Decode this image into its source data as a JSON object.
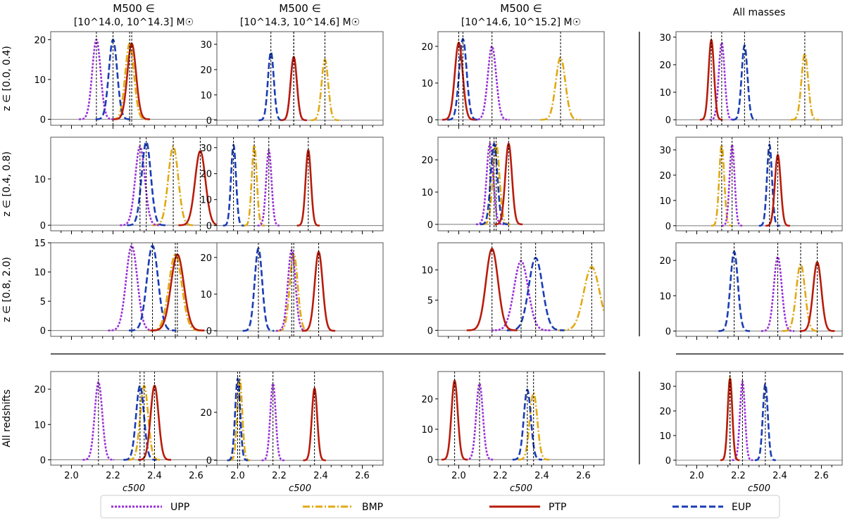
{
  "figure": {
    "column_titles": [
      {
        "line1": "M500 ∈",
        "line2": "[10^14.0, 10^14.3] M☉"
      },
      {
        "line1": "M500 ∈",
        "line2": "[10^14.3, 10^14.6] M☉"
      },
      {
        "line1": "M500 ∈",
        "line2": "[10^14.6, 10^15.2] M☉"
      },
      {
        "line1": "All masses",
        "line2": ""
      }
    ],
    "row_labels": [
      "z ∈ [0.0, 0.4)",
      "z ∈ [0.4, 0.8)",
      "z ∈ [0.8, 2.0)",
      "All redshifts"
    ],
    "x_label": "c500",
    "x_ticks": [
      "2.0",
      "2.2",
      "2.4",
      "2.6"
    ],
    "legend": [
      {
        "key": "UPP",
        "label": "UPP",
        "color": "#9b30d9",
        "dash": "3,2"
      },
      {
        "key": "BMP",
        "label": "BMP",
        "color": "#e0a914",
        "dash": "10,3,2,3"
      },
      {
        "key": "PTP",
        "label": "PTP",
        "color": "#b81c0c",
        "dash": ""
      },
      {
        "key": "EUP",
        "label": "EUP",
        "color": "#1a3db4",
        "dash": "9,4"
      }
    ]
  },
  "chart_data": {
    "type": "line",
    "description_units": "Gaussian posterior curves: mu = peak location (c500), sigma = width, a = peak density",
    "xlim": [
      1.9,
      2.7
    ],
    "panels": [
      {
        "row": 0,
        "col": 0,
        "ylim": [
          -1.5,
          22
        ],
        "yticks": [
          0,
          10,
          20
        ],
        "series": [
          {
            "name": "UPP",
            "mu": 2.12,
            "sigma": 0.02,
            "a": 20
          },
          {
            "name": "BMP",
            "mu": 2.28,
            "sigma": 0.021,
            "a": 19
          },
          {
            "name": "PTP",
            "mu": 2.29,
            "sigma": 0.021,
            "a": 19
          },
          {
            "name": "EUP",
            "mu": 2.2,
            "sigma": 0.02,
            "a": 20
          }
        ]
      },
      {
        "row": 0,
        "col": 1,
        "ylim": [
          -2,
          35
        ],
        "yticks": [
          0,
          10,
          20,
          30
        ],
        "series": [
          {
            "name": "UPP",
            "mu": 2.27,
            "sigma": 0.015,
            "a": 25
          },
          {
            "name": "BMP",
            "mu": 2.42,
            "sigma": 0.016,
            "a": 24
          },
          {
            "name": "PTP",
            "mu": 2.27,
            "sigma": 0.015,
            "a": 25
          },
          {
            "name": "EUP",
            "mu": 2.16,
            "sigma": 0.014,
            "a": 27
          }
        ]
      },
      {
        "row": 0,
        "col": 2,
        "ylim": [
          -1.5,
          24
        ],
        "yticks": [
          0,
          10,
          20
        ],
        "series": [
          {
            "name": "UPP",
            "mu": 2.16,
            "sigma": 0.02,
            "a": 20
          },
          {
            "name": "BMP",
            "mu": 2.49,
            "sigma": 0.023,
            "a": 17
          },
          {
            "name": "PTP",
            "mu": 2.0,
            "sigma": 0.019,
            "a": 21
          },
          {
            "name": "EUP",
            "mu": 2.02,
            "sigma": 0.018,
            "a": 22
          }
        ]
      },
      {
        "row": 0,
        "col": 3,
        "ylim": [
          -2,
          32
        ],
        "yticks": [
          0,
          10,
          20,
          30
        ],
        "series": [
          {
            "name": "UPP",
            "mu": 2.12,
            "sigma": 0.014,
            "a": 28
          },
          {
            "name": "BMP",
            "mu": 2.52,
            "sigma": 0.016,
            "a": 24
          },
          {
            "name": "PTP",
            "mu": 2.07,
            "sigma": 0.013,
            "a": 29
          },
          {
            "name": "EUP",
            "mu": 2.23,
            "sigma": 0.014,
            "a": 27
          }
        ]
      },
      {
        "row": 1,
        "col": 0,
        "ylim": [
          -1.2,
          19
        ],
        "yticks": [
          0,
          10
        ],
        "series": [
          {
            "name": "UPP",
            "mu": 2.33,
            "sigma": 0.023,
            "a": 17
          },
          {
            "name": "BMP",
            "mu": 2.49,
            "sigma": 0.024,
            "a": 17
          },
          {
            "name": "PTP",
            "mu": 2.62,
            "sigma": 0.025,
            "a": 16
          },
          {
            "name": "EUP",
            "mu": 2.36,
            "sigma": 0.022,
            "a": 18
          }
        ]
      },
      {
        "row": 1,
        "col": 1,
        "ylim": [
          -2,
          34
        ],
        "yticks": [
          0,
          10,
          20,
          30
        ],
        "series": [
          {
            "name": "UPP",
            "mu": 2.15,
            "sigma": 0.013,
            "a": 29
          },
          {
            "name": "BMP",
            "mu": 2.08,
            "sigma": 0.012,
            "a": 31
          },
          {
            "name": "PTP",
            "mu": 2.34,
            "sigma": 0.013,
            "a": 29
          },
          {
            "name": "EUP",
            "mu": 1.98,
            "sigma": 0.012,
            "a": 31
          }
        ]
      },
      {
        "row": 1,
        "col": 2,
        "ylim": [
          -2,
          27
        ],
        "yticks": [
          0,
          10,
          20
        ],
        "series": [
          {
            "name": "UPP",
            "mu": 2.15,
            "sigma": 0.016,
            "a": 25
          },
          {
            "name": "BMP",
            "mu": 2.18,
            "sigma": 0.016,
            "a": 25
          },
          {
            "name": "PTP",
            "mu": 2.24,
            "sigma": 0.016,
            "a": 25
          },
          {
            "name": "EUP",
            "mu": 2.17,
            "sigma": 0.016,
            "a": 25
          }
        ]
      },
      {
        "row": 1,
        "col": 3,
        "ylim": [
          -2,
          35
        ],
        "yticks": [
          0,
          10,
          20,
          30
        ],
        "series": [
          {
            "name": "UPP",
            "mu": 2.17,
            "sigma": 0.012,
            "a": 32
          },
          {
            "name": "BMP",
            "mu": 2.12,
            "sigma": 0.012,
            "a": 32
          },
          {
            "name": "PTP",
            "mu": 2.39,
            "sigma": 0.014,
            "a": 28
          },
          {
            "name": "EUP",
            "mu": 2.35,
            "sigma": 0.012,
            "a": 32
          }
        ]
      },
      {
        "row": 2,
        "col": 0,
        "ylim": [
          -1,
          15
        ],
        "yticks": [
          0,
          5,
          10,
          15
        ],
        "series": [
          {
            "name": "UPP",
            "mu": 2.29,
            "sigma": 0.027,
            "a": 14.5
          },
          {
            "name": "BMP",
            "mu": 2.5,
            "sigma": 0.031,
            "a": 13
          },
          {
            "name": "PTP",
            "mu": 2.51,
            "sigma": 0.031,
            "a": 13
          },
          {
            "name": "EUP",
            "mu": 2.39,
            "sigma": 0.027,
            "a": 14.5
          }
        ]
      },
      {
        "row": 2,
        "col": 1,
        "ylim": [
          -1.5,
          24
        ],
        "yticks": [
          0,
          10,
          20
        ],
        "series": [
          {
            "name": "UPP",
            "mu": 2.26,
            "sigma": 0.018,
            "a": 22
          },
          {
            "name": "BMP",
            "mu": 2.27,
            "sigma": 0.019,
            "a": 21
          },
          {
            "name": "PTP",
            "mu": 2.39,
            "sigma": 0.019,
            "a": 21.5
          },
          {
            "name": "EUP",
            "mu": 2.1,
            "sigma": 0.018,
            "a": 22.5
          }
        ]
      },
      {
        "row": 2,
        "col": 2,
        "ylim": [
          -1,
          14.5
        ],
        "yticks": [
          0,
          5,
          10
        ],
        "series": [
          {
            "name": "UPP",
            "mu": 2.3,
            "sigma": 0.034,
            "a": 11.5
          },
          {
            "name": "BMP",
            "mu": 2.64,
            "sigma": 0.038,
            "a": 10.5
          },
          {
            "name": "PTP",
            "mu": 2.16,
            "sigma": 0.029,
            "a": 13.5
          },
          {
            "name": "EUP",
            "mu": 2.37,
            "sigma": 0.033,
            "a": 12
          }
        ]
      },
      {
        "row": 2,
        "col": 3,
        "ylim": [
          -1.5,
          25
        ],
        "yticks": [
          0,
          10,
          20
        ],
        "series": [
          {
            "name": "UPP",
            "mu": 2.39,
            "sigma": 0.019,
            "a": 21
          },
          {
            "name": "BMP",
            "mu": 2.5,
            "sigma": 0.021,
            "a": 19
          },
          {
            "name": "PTP",
            "mu": 2.58,
            "sigma": 0.02,
            "a": 19.5
          },
          {
            "name": "EUP",
            "mu": 2.18,
            "sigma": 0.018,
            "a": 22.5
          }
        ]
      },
      {
        "row": 3,
        "col": 0,
        "ylim": [
          -1.5,
          25
        ],
        "yticks": [
          0,
          10,
          20
        ],
        "series": [
          {
            "name": "UPP",
            "mu": 2.13,
            "sigma": 0.018,
            "a": 22
          },
          {
            "name": "BMP",
            "mu": 2.35,
            "sigma": 0.019,
            "a": 21
          },
          {
            "name": "PTP",
            "mu": 2.4,
            "sigma": 0.019,
            "a": 21
          },
          {
            "name": "EUP",
            "mu": 2.33,
            "sigma": 0.019,
            "a": 21
          }
        ]
      },
      {
        "row": 3,
        "col": 1,
        "ylim": [
          -2,
          37
        ],
        "yticks": [
          0,
          20
        ],
        "series": [
          {
            "name": "UPP",
            "mu": 2.17,
            "sigma": 0.013,
            "a": 32
          },
          {
            "name": "BMP",
            "mu": 2.01,
            "sigma": 0.012,
            "a": 34
          },
          {
            "name": "PTP",
            "mu": 2.37,
            "sigma": 0.013,
            "a": 30
          },
          {
            "name": "EUP",
            "mu": 2.0,
            "sigma": 0.012,
            "a": 34
          }
        ]
      },
      {
        "row": 3,
        "col": 2,
        "ylim": [
          -1.8,
          29
        ],
        "yticks": [
          0,
          10,
          20
        ],
        "series": [
          {
            "name": "UPP",
            "mu": 2.1,
            "sigma": 0.016,
            "a": 25
          },
          {
            "name": "BMP",
            "mu": 2.36,
            "sigma": 0.018,
            "a": 22
          },
          {
            "name": "PTP",
            "mu": 1.98,
            "sigma": 0.015,
            "a": 26
          },
          {
            "name": "EUP",
            "mu": 2.33,
            "sigma": 0.017,
            "a": 23
          }
        ]
      },
      {
        "row": 3,
        "col": 3,
        "ylim": [
          -2,
          36
        ],
        "yticks": [
          0,
          10,
          20,
          30
        ],
        "series": [
          {
            "name": "UPP",
            "mu": 2.22,
            "sigma": 0.012,
            "a": 32
          },
          {
            "name": "BMP",
            "mu": 2.16,
            "sigma": 0.011,
            "a": 34
          },
          {
            "name": "PTP",
            "mu": 2.16,
            "sigma": 0.011,
            "a": 33
          },
          {
            "name": "EUP",
            "mu": 2.33,
            "sigma": 0.012,
            "a": 31
          }
        ]
      }
    ]
  }
}
